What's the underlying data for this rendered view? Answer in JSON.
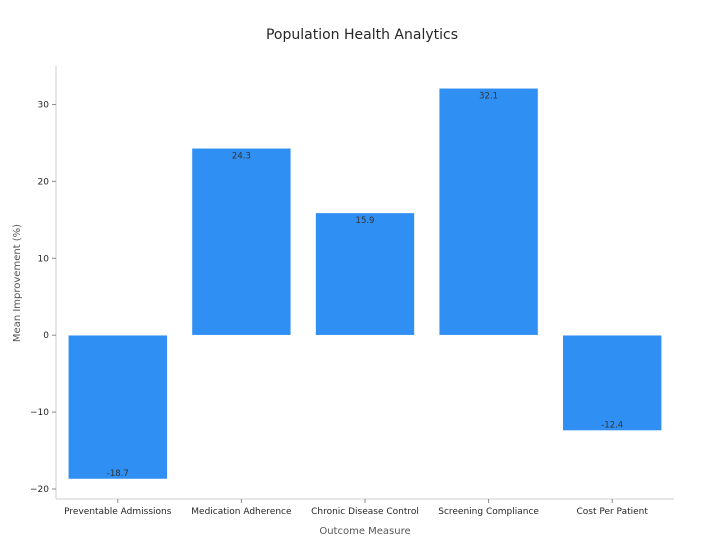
{
  "chart_data": {
    "type": "bar",
    "title": "Population Health Analytics",
    "xlabel": "Outcome Measure",
    "ylabel": "Mean Improvement (%)",
    "categories": [
      "Preventable Admissions",
      "Medication Adherence",
      "Chronic Disease Control",
      "Screening Compliance",
      "Cost Per Patient"
    ],
    "values": [
      -18.7,
      24.3,
      15.9,
      32.1,
      -12.4
    ],
    "data_labels": [
      "-18.7",
      "24.3",
      "15.9",
      "32.1",
      "-12.4"
    ],
    "ylim": [
      -21.3,
      35.0
    ],
    "yticks": [
      -20,
      -10,
      0,
      10,
      20,
      30
    ],
    "ytick_labels": [
      "−20",
      "−10",
      "0",
      "10",
      "20",
      "30"
    ],
    "bar_color": "#2f8ff2",
    "grid": false
  }
}
